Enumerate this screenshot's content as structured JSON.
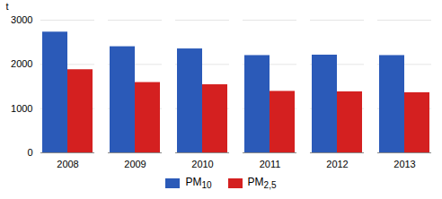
{
  "chart_data": {
    "type": "bar",
    "categories": [
      "2008",
      "2009",
      "2010",
      "2011",
      "2012",
      "2013"
    ],
    "series": [
      {
        "name": "PM10",
        "color": "#2B5AB8",
        "values": [
          2730,
          2400,
          2350,
          2200,
          2210,
          2200
        ]
      },
      {
        "name": "PM2,5",
        "color": "#D42020",
        "values": [
          1880,
          1590,
          1540,
          1390,
          1380,
          1360
        ]
      }
    ],
    "ylabel": "t",
    "ylim": [
      0,
      3000
    ],
    "yticks": [
      0,
      1000,
      2000,
      3000
    ],
    "grid": true,
    "legend": "bottom"
  }
}
